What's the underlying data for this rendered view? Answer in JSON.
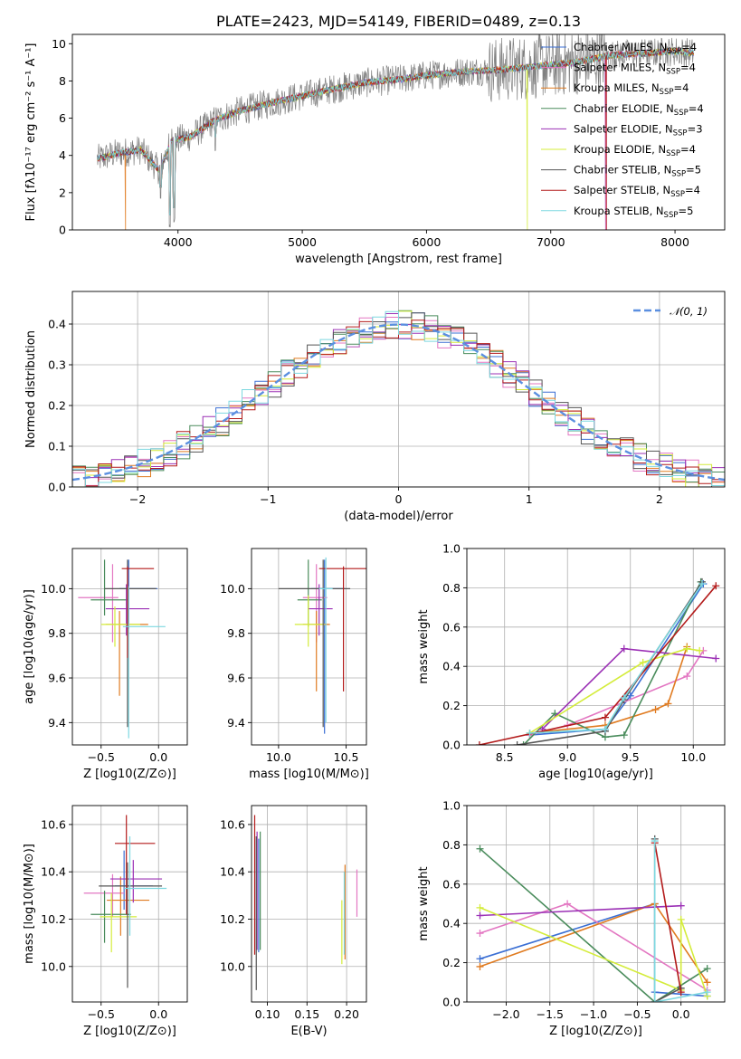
{
  "chart_data": [
    {
      "type": "line",
      "title": "PLATE=2423, MJD=54149, FIBERID=0489, z=0.13",
      "xlabel": "wavelength [Angstrom, rest frame]",
      "ylabel": "Flux [fλ10⁻¹⁷ erg cm⁻² s⁻¹ A⁻¹]",
      "xlim": [
        3150,
        8400
      ],
      "ylim": [
        0,
        10.5
      ],
      "xticks": [
        4000,
        5000,
        6000,
        7000,
        8000
      ],
      "yticks": [
        0,
        2,
        4,
        6,
        8,
        10
      ],
      "grid": false,
      "legend_position": "top-right",
      "observed_color": "#808080",
      "observed_shape": {
        "points": [
          [
            3350,
            3.8
          ],
          [
            3500,
            4.1
          ],
          [
            3700,
            4.3
          ],
          [
            3850,
            3.2
          ],
          [
            3950,
            4.8
          ],
          [
            4100,
            5.0
          ],
          [
            4300,
            5.9
          ],
          [
            4500,
            6.4
          ],
          [
            4800,
            6.9
          ],
          [
            5000,
            7.2
          ],
          [
            5200,
            7.5
          ],
          [
            5500,
            7.9
          ],
          [
            5800,
            8.1
          ],
          [
            6000,
            8.3
          ],
          [
            6300,
            8.5
          ],
          [
            6600,
            8.6
          ],
          [
            6900,
            8.8
          ],
          [
            7200,
            9.0
          ],
          [
            7500,
            9.4
          ],
          [
            7800,
            9.5
          ],
          [
            8000,
            9.6
          ],
          [
            8150,
            9.5
          ]
        ],
        "start": 3350,
        "end": 8150,
        "noise": 0.45,
        "strong_noise_range": [
          6500,
          7450
        ],
        "dips": [
          [
            3934,
            0
          ],
          [
            3969,
            0.4
          ],
          [
            3860,
            1.5
          ],
          [
            4300,
            4.2
          ]
        ]
      },
      "series": [
        {
          "name": "Chabrier MILES, N_SSP=4",
          "color": "#3b6fd4",
          "drop": 7440
        },
        {
          "name": "Salpeter MILES, N_SSP=4",
          "color": "#e377c2",
          "drop": 7445
        },
        {
          "name": "Kroupa MILES, N_SSP=4",
          "color": "#e07b20",
          "start_drop": 3580
        },
        {
          "name": "Chabrier ELODIE, N_SSP=4",
          "color": "#4a8c5c"
        },
        {
          "name": "Salpeter ELODIE, N_SSP=3",
          "color": "#9b30b5"
        },
        {
          "name": "Kroupa ELODIE, N_SSP=4",
          "color": "#d4ec3a",
          "drop": 6810
        },
        {
          "name": "Chabrier STELIB, N_SSP=5",
          "color": "#555555"
        },
        {
          "name": "Salpeter STELIB, N_SSP=4",
          "color": "#b31b1b",
          "drop": 7450
        },
        {
          "name": "Kroupa STELIB, N_SSP=5",
          "color": "#7dd8e0"
        }
      ]
    },
    {
      "type": "line",
      "xlabel": "(data-model)/error",
      "ylabel": "Normed distribution",
      "xlim": [
        -2.5,
        2.5
      ],
      "ylim": [
        0,
        0.48
      ],
      "xticks": [
        -2,
        -1,
        0,
        1,
        2
      ],
      "yticks": [
        0.0,
        0.1,
        0.2,
        0.3,
        0.4
      ],
      "grid": true,
      "legend_position": "top-right",
      "gaussian": {
        "name": "𝒩(0, 1)",
        "mean": 0,
        "sigma": 1,
        "color": "#5b8fe0"
      },
      "histogram_bin_width": 0.1,
      "histogram_series_count": 9
    },
    {
      "type": "scatter",
      "xlabel": "Z [log10(Z/Z⊙)]",
      "ylabel": "age [log10(age/yr)]",
      "xlim": [
        -0.75,
        0.25
      ],
      "ylim": [
        9.3,
        10.18
      ],
      "xticks": [
        -0.5,
        0.0
      ],
      "yticks": [
        9.4,
        9.6,
        9.8,
        10.0
      ],
      "points": [
        {
          "x": -0.26,
          "y": 10.0,
          "xerr": [
            0.08,
            0.25
          ],
          "yerr": [
            0.18,
            0.13
          ],
          "color": "#3b6fd4"
        },
        {
          "x": -0.4,
          "y": 9.96,
          "xerr": [
            0.3,
            0.05
          ],
          "yerr": [
            0.2,
            0.15
          ],
          "color": "#e377c2"
        },
        {
          "x": -0.34,
          "y": 9.84,
          "xerr": [
            0.12,
            0.25
          ],
          "yerr": [
            0.32,
            0.06
          ],
          "color": "#e07b20"
        },
        {
          "x": -0.47,
          "y": 9.95,
          "xerr": [
            0.12,
            0.2
          ],
          "yerr": [
            0.07,
            0.18
          ],
          "color": "#4a8c5c"
        },
        {
          "x": -0.28,
          "y": 9.91,
          "xerr": [
            0.18,
            0.2
          ],
          "yerr": [
            0.12,
            0.11
          ],
          "color": "#9b30b5"
        },
        {
          "x": -0.38,
          "y": 9.84,
          "xerr": [
            0.12,
            0.22
          ],
          "yerr": [
            0.1,
            0.08
          ],
          "color": "#d4ec3a"
        },
        {
          "x": -0.27,
          "y": 10.0,
          "xerr": [
            0.2,
            0.25
          ],
          "yerr": [
            0.62,
            0.13
          ],
          "color": "#555555"
        },
        {
          "x": -0.27,
          "y": 10.09,
          "xerr": [
            0.05,
            0.23
          ],
          "yerr": [
            0.4,
            0.01
          ],
          "color": "#b31b1b"
        },
        {
          "x": -0.26,
          "y": 9.83,
          "xerr": [
            0.05,
            0.32
          ],
          "yerr": [
            0.5,
            0.18
          ],
          "color": "#7dd8e0"
        }
      ]
    },
    {
      "type": "scatter",
      "xlabel": "mass [log10(M/M⊙)]",
      "ylabel": "",
      "xlim": [
        9.8,
        10.65
      ],
      "ylim": [
        9.3,
        10.18
      ],
      "xticks": [
        10.0,
        10.5
      ],
      "yticks": [
        9.4,
        9.6,
        9.8,
        10.0
      ],
      "points": [
        {
          "x": 10.34,
          "y": 10.0,
          "xerr": [
            0.1,
            0.15
          ],
          "yerr": [
            0.65,
            0.13
          ],
          "color": "#3b6fd4"
        },
        {
          "x": 10.28,
          "y": 9.96,
          "xerr": [
            0.1,
            0.08
          ],
          "yerr": [
            0.2,
            0.15
          ],
          "color": "#e377c2"
        },
        {
          "x": 10.28,
          "y": 9.84,
          "xerr": [
            0.1,
            0.1
          ],
          "yerr": [
            0.3,
            0.06
          ],
          "color": "#e07b20"
        },
        {
          "x": 10.22,
          "y": 9.95,
          "xerr": [
            0.08,
            0.1
          ],
          "yerr": [
            0.12,
            0.18
          ],
          "color": "#4a8c5c"
        },
        {
          "x": 10.3,
          "y": 9.91,
          "xerr": [
            0.08,
            0.1
          ],
          "yerr": [
            0.12,
            0.11
          ],
          "color": "#9b30b5"
        },
        {
          "x": 10.22,
          "y": 9.84,
          "xerr": [
            0.1,
            0.12
          ],
          "yerr": [
            0.1,
            0.13
          ],
          "color": "#d4ec3a"
        },
        {
          "x": 10.33,
          "y": 10.0,
          "xerr": [
            0.33,
            0.2
          ],
          "yerr": [
            0.62,
            0.13
          ],
          "color": "#555555"
        },
        {
          "x": 10.48,
          "y": 10.09,
          "xerr": [
            0.18,
            0.17
          ],
          "yerr": [
            0.55,
            0.01
          ],
          "color": "#b31b1b"
        },
        {
          "x": 10.35,
          "y": 10.0,
          "xerr": [
            0.05,
            0.05
          ],
          "yerr": [
            0.6,
            0.14
          ],
          "color": "#7dd8e0"
        }
      ]
    },
    {
      "type": "line",
      "xlabel": "age [log10(age/yr)]",
      "ylabel": "mass weight",
      "xlim": [
        8.2,
        10.25
      ],
      "ylim": [
        0,
        1.0
      ],
      "xticks": [
        8.5,
        9.0,
        9.5,
        10.0
      ],
      "yticks": [
        0.0,
        0.2,
        0.4,
        0.6,
        0.8,
        1.0
      ],
      "grid": true,
      "series": [
        {
          "color": "#3b6fd4",
          "x": [
            8.7,
            9.3,
            9.5,
            10.08
          ],
          "y": [
            0.05,
            0.08,
            0.25,
            0.82
          ]
        },
        {
          "color": "#e377c2",
          "x": [
            8.7,
            9.0,
            9.95,
            10.08
          ],
          "y": [
            0.05,
            0.1,
            0.35,
            0.48
          ]
        },
        {
          "color": "#e07b20",
          "x": [
            8.7,
            9.3,
            9.7,
            9.8,
            9.95
          ],
          "y": [
            0.06,
            0.1,
            0.18,
            0.21,
            0.5
          ]
        },
        {
          "color": "#4a8c5c",
          "x": [
            8.65,
            8.9,
            9.3,
            9.45,
            10.06
          ],
          "y": [
            0.0,
            0.16,
            0.04,
            0.05,
            0.83
          ]
        },
        {
          "color": "#9b30b5",
          "x": [
            8.8,
            9.45,
            10.18
          ],
          "y": [
            0.08,
            0.49,
            0.44
          ]
        },
        {
          "color": "#d4ec3a",
          "x": [
            8.7,
            9.6,
            9.95,
            10.05
          ],
          "y": [
            0.06,
            0.42,
            0.49,
            0.48
          ]
        },
        {
          "color": "#555555",
          "x": [
            8.6,
            9.3,
            9.45,
            10.07
          ],
          "y": [
            0.0,
            0.07,
            0.23,
            0.83
          ]
        },
        {
          "color": "#b31b1b",
          "x": [
            8.3,
            9.3,
            10.18
          ],
          "y": [
            0.0,
            0.14,
            0.81
          ]
        },
        {
          "color": "#7dd8e0",
          "x": [
            8.7,
            9.3,
            9.45,
            10.07
          ],
          "y": [
            0.06,
            0.08,
            0.24,
            0.82
          ]
        }
      ]
    },
    {
      "type": "scatter",
      "xlabel": "Z [log10(Z/Z⊙)]",
      "ylabel": "mass [log10(M/M⊙)]",
      "xlim": [
        -0.75,
        0.25
      ],
      "ylim": [
        9.85,
        10.68
      ],
      "xticks": [
        -0.5,
        0.0
      ],
      "yticks": [
        10.0,
        10.2,
        10.4,
        10.6
      ],
      "points": [
        {
          "x": -0.3,
          "y": 10.34,
          "xerr": [
            0.08,
            0.25
          ],
          "yerr": [
            0.1,
            0.15
          ],
          "color": "#3b6fd4"
        },
        {
          "x": -0.4,
          "y": 10.31,
          "xerr": [
            0.25,
            0.1
          ],
          "yerr": [
            0.1,
            0.08
          ],
          "color": "#e377c2"
        },
        {
          "x": -0.33,
          "y": 10.28,
          "xerr": [
            0.12,
            0.25
          ],
          "yerr": [
            0.15,
            0.1
          ],
          "color": "#e07b20"
        },
        {
          "x": -0.47,
          "y": 10.22,
          "xerr": [
            0.12,
            0.23
          ],
          "yerr": [
            0.12,
            0.1
          ],
          "color": "#4a8c5c"
        },
        {
          "x": -0.22,
          "y": 10.37,
          "xerr": [
            0.2,
            0.25
          ],
          "yerr": [
            0.1,
            0.08
          ],
          "color": "#9b30b5"
        },
        {
          "x": -0.41,
          "y": 10.21,
          "xerr": [
            0.1,
            0.22
          ],
          "yerr": [
            0.15,
            0.1
          ],
          "color": "#d4ec3a"
        },
        {
          "x": -0.27,
          "y": 10.34,
          "xerr": [
            0.25,
            0.3
          ],
          "yerr": [
            0.43,
            0.1
          ],
          "color": "#555555"
        },
        {
          "x": -0.28,
          "y": 10.52,
          "xerr": [
            0.1,
            0.25
          ],
          "yerr": [
            0.3,
            0.12
          ],
          "color": "#b31b1b"
        },
        {
          "x": -0.25,
          "y": 10.33,
          "xerr": [
            0.05,
            0.32
          ],
          "yerr": [
            0.2,
            0.22
          ],
          "color": "#7dd8e0"
        }
      ]
    },
    {
      "type": "scatter",
      "xlabel": "E(B-V)",
      "ylabel": "",
      "xlim": [
        0.08,
        0.225
      ],
      "ylim": [
        9.85,
        10.68
      ],
      "xticks": [
        0.1,
        0.15,
        0.2
      ],
      "yticks": [
        10.0,
        10.2,
        10.4,
        10.6
      ],
      "points": [
        {
          "x": 0.089,
          "y": 10.34,
          "yerr": [
            0.28,
            0.2
          ],
          "color": "#3b6fd4"
        },
        {
          "x": 0.213,
          "y": 10.31,
          "yerr": [
            0.1,
            0.1
          ],
          "color": "#e377c2"
        },
        {
          "x": 0.198,
          "y": 10.28,
          "yerr": [
            0.25,
            0.15
          ],
          "color": "#e07b20"
        },
        {
          "x": 0.091,
          "y": 10.22,
          "yerr": [
            0.15,
            0.35
          ],
          "color": "#4a8c5c"
        },
        {
          "x": 0.087,
          "y": 10.37,
          "yerr": [
            0.3,
            0.2
          ],
          "color": "#9b30b5"
        },
        {
          "x": 0.194,
          "y": 10.21,
          "yerr": [
            0.2,
            0.07
          ],
          "color": "#d4ec3a"
        },
        {
          "x": 0.086,
          "y": 10.3,
          "yerr": [
            0.4,
            0.25
          ],
          "color": "#555555"
        },
        {
          "x": 0.084,
          "y": 10.4,
          "yerr": [
            0.35,
            0.24
          ],
          "color": "#b31b1b"
        },
        {
          "x": 0.197,
          "y": 10.2,
          "yerr": [
            0.15,
            0.2
          ],
          "color": "#7dd8e0"
        }
      ]
    },
    {
      "type": "line",
      "xlabel": "Z [log10(Z/Z⊙)]",
      "ylabel": "mass weight",
      "xlim": [
        -2.45,
        0.5
      ],
      "ylim": [
        0,
        1.0
      ],
      "xticks": [
        -2.0,
        -1.5,
        -1.0,
        -0.5,
        0.0
      ],
      "yticks": [
        0.0,
        0.2,
        0.4,
        0.6,
        0.8,
        1.0
      ],
      "grid": true,
      "series": [
        {
          "color": "#3b6fd4",
          "x": [
            -2.3,
            -0.3,
            -0.3,
            0.3
          ],
          "y": [
            0.22,
            0.5,
            0.05,
            0.03
          ]
        },
        {
          "color": "#e377c2",
          "x": [
            -2.3,
            -1.3,
            0.3
          ],
          "y": [
            0.35,
            0.5,
            0.06
          ]
        },
        {
          "color": "#e07b20",
          "x": [
            -2.3,
            -0.3,
            0.3
          ],
          "y": [
            0.18,
            0.5,
            0.1
          ]
        },
        {
          "color": "#4a8c5c",
          "x": [
            -2.3,
            -0.3,
            0.3
          ],
          "y": [
            0.78,
            0.0,
            0.17
          ]
        },
        {
          "color": "#9b30b5",
          "x": [
            -2.3,
            0.0
          ],
          "y": [
            0.44,
            0.49
          ]
        },
        {
          "color": "#d4ec3a",
          "x": [
            -2.3,
            0.0,
            0.0,
            0.3
          ],
          "y": [
            0.48,
            0.06,
            0.42,
            0.03
          ]
        },
        {
          "color": "#555555",
          "x": [
            -0.3,
            -0.3,
            0.0
          ],
          "y": [
            0.83,
            0.0,
            0.07
          ]
        },
        {
          "color": "#b31b1b",
          "x": [
            -0.3,
            0.0
          ],
          "y": [
            0.81,
            0.05
          ]
        },
        {
          "color": "#7dd8e0",
          "x": [
            -0.3,
            -0.3,
            0.3
          ],
          "y": [
            0.82,
            0.0,
            0.05
          ]
        }
      ]
    }
  ]
}
